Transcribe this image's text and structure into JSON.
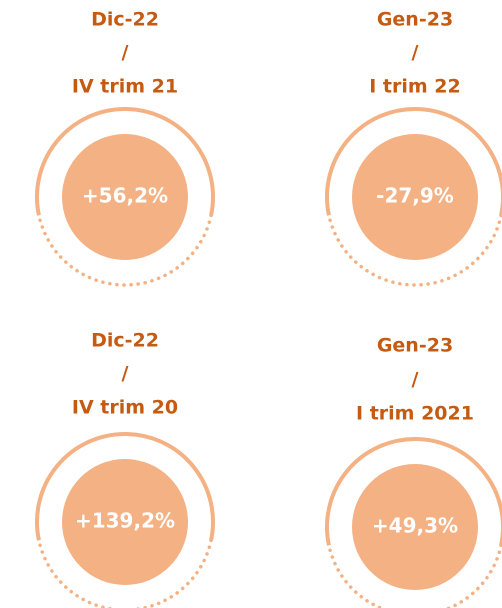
{
  "items": [
    {
      "lines": [
        "Dic-22",
        "/",
        "IV trim 21"
      ],
      "value": "+56,2%"
    },
    {
      "lines": [
        "Gen-23",
        "/",
        "I trim 22"
      ],
      "value": "-27,9%"
    },
    {
      "lines": [
        "Dic-22",
        "/",
        "IV trim 20"
      ],
      "value": "+139,2%"
    },
    {
      "lines": [
        "Gen-23",
        "/",
        "I trim 2021"
      ],
      "value": "+49,3%"
    }
  ]
}
